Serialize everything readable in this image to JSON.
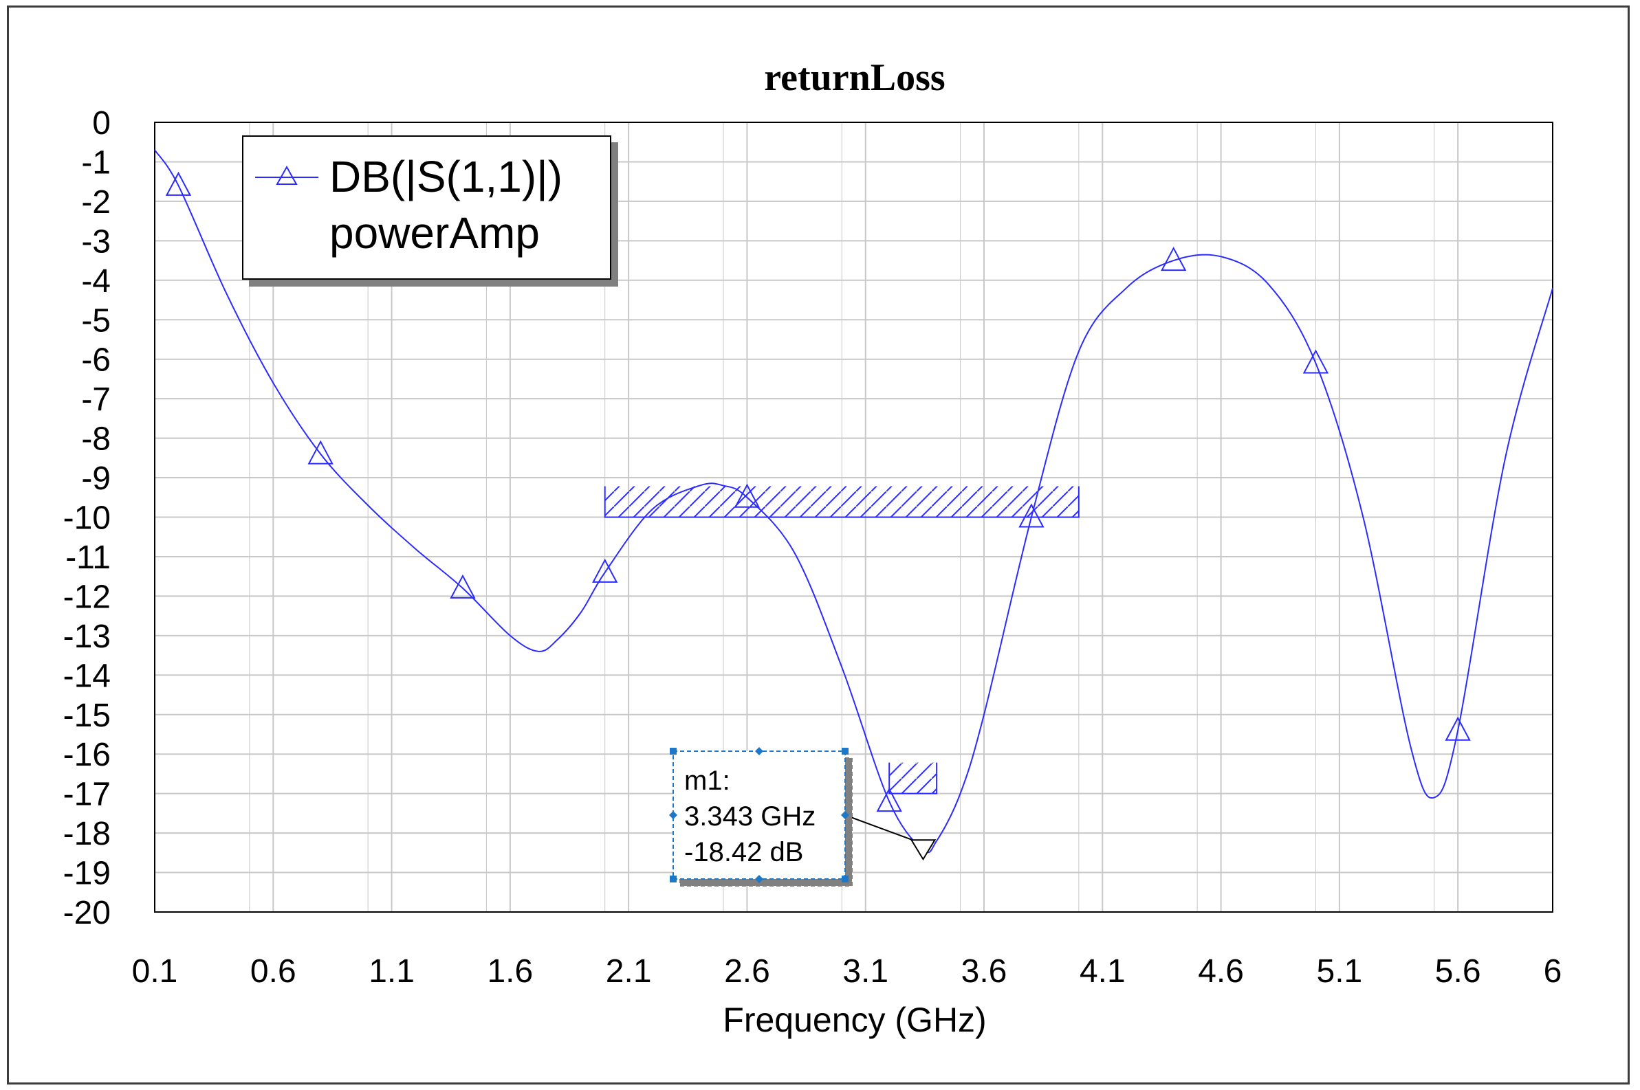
{
  "chart_data": {
    "type": "line",
    "title": "returnLoss",
    "xlabel": "Frequency (GHz)",
    "ylabel": "",
    "xlim": [
      0.1,
      6
    ],
    "ylim": [
      -20,
      0
    ],
    "x_ticks": [
      "0.1",
      "0.6",
      "1.1",
      "1.6",
      "2.1",
      "2.6",
      "3.1",
      "3.6",
      "4.1",
      "4.6",
      "5.1",
      "5.6",
      "6"
    ],
    "y_ticks": [
      "0",
      "-1",
      "-2",
      "-3",
      "-4",
      "-5",
      "-6",
      "-7",
      "-8",
      "-9",
      "-10",
      "-11",
      "-12",
      "-13",
      "-14",
      "-15",
      "-16",
      "-17",
      "-18",
      "-19",
      "-20"
    ],
    "grid": true,
    "legend_position": "top-left",
    "colors": {
      "series": "#2b2bff",
      "grid": "#c8c8c8",
      "marker_box": "#1e78c8"
    },
    "series": [
      {
        "name": "DB(|S(1,1)|)",
        "label_line2": "powerAmp",
        "marker": "triangle-up",
        "x": [
          0.1,
          0.2,
          0.4,
          0.6,
          0.8,
          1.0,
          1.2,
          1.4,
          1.6,
          1.72,
          1.8,
          1.9,
          2.0,
          2.2,
          2.4,
          2.5,
          2.6,
          2.8,
          3.0,
          3.2,
          3.343,
          3.4,
          3.5,
          3.6,
          3.8,
          4.0,
          4.2,
          4.4,
          4.6,
          4.8,
          5.0,
          5.2,
          5.4,
          5.5,
          5.6,
          5.8,
          6.0
        ],
        "y": [
          -0.7,
          -1.6,
          -4.3,
          -6.6,
          -8.4,
          -9.7,
          -10.8,
          -11.8,
          -13.0,
          -13.4,
          -13.1,
          -12.4,
          -11.4,
          -9.8,
          -9.2,
          -9.2,
          -9.5,
          -10.9,
          -13.8,
          -17.2,
          -18.42,
          -18.2,
          -17.0,
          -15.0,
          -10.0,
          -5.8,
          -4.2,
          -3.5,
          -3.4,
          -4.1,
          -6.1,
          -10.0,
          -15.8,
          -17.1,
          -15.4,
          -8.5,
          -4.2
        ],
        "marker_x": [
          0.2,
          0.8,
          1.4,
          2.0,
          2.6,
          3.2,
          3.8,
          4.4,
          5.0,
          5.6
        ],
        "marker_y": [
          -1.6,
          -8.4,
          -11.8,
          -11.4,
          -9.5,
          -17.2,
          -10.0,
          -3.5,
          -6.1,
          -15.4
        ]
      }
    ],
    "specs": [
      {
        "x": [
          2.0,
          4.0
        ],
        "y": -10
      },
      {
        "x": [
          3.2,
          3.4
        ],
        "y": -17
      }
    ],
    "marker": {
      "name": "m1:",
      "freq": "3.343 GHz",
      "value": "-18.42 dB",
      "x": 3.343,
      "y": -18.42
    }
  }
}
